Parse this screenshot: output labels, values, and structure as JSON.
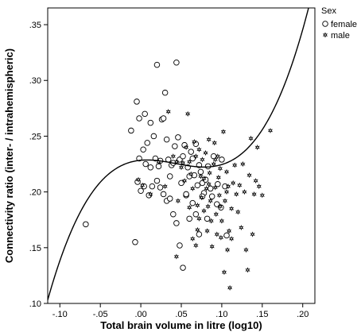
{
  "chart_data": {
    "type": "scatter",
    "xlabel": "Total brain volume in litre (log10)",
    "ylabel": "Connectivity ratio (inter- / intrahemispheric)",
    "xlim": [
      -0.115,
      0.215
    ],
    "ylim": [
      0.1,
      0.365
    ],
    "x_ticks": [
      -0.1,
      -0.05,
      0.0,
      0.05,
      0.1,
      0.15,
      0.2
    ],
    "x_tick_labels": [
      "-.10",
      "-.05",
      ".00",
      ".05",
      ".10",
      ".15",
      ".20"
    ],
    "y_ticks": [
      0.1,
      0.15,
      0.2,
      0.25,
      0.3,
      0.35
    ],
    "y_tick_labels": [
      ".10",
      ".15",
      ".20",
      ".25",
      ".30",
      ".35"
    ],
    "grid": false,
    "legend": {
      "title": "Sex",
      "placement": "top-right outside",
      "entries": [
        {
          "label": "female",
          "marker": "open-circle"
        },
        {
          "label": "male",
          "marker": "star"
        }
      ]
    },
    "fit_line": {
      "type": "cubic",
      "coefficients": [
        0.2284,
        0.0665,
        -4.7,
        36.5
      ]
    },
    "series": [
      {
        "name": "female",
        "marker": "open-circle",
        "points": [
          [
            -0.068,
            0.171
          ],
          [
            -0.007,
            0.155
          ],
          [
            -0.012,
            0.255
          ],
          [
            -0.005,
            0.281
          ],
          [
            -0.002,
            0.266
          ],
          [
            0.003,
            0.238
          ],
          [
            0.005,
            0.27
          ],
          [
            0.008,
            0.244
          ],
          [
            0.012,
            0.262
          ],
          [
            0.016,
            0.25
          ],
          [
            0.02,
            0.314
          ],
          [
            0.022,
            0.223
          ],
          [
            0.024,
            0.228
          ],
          [
            0.026,
            0.265
          ],
          [
            0.028,
            0.266
          ],
          [
            0.03,
            0.289
          ],
          [
            0.032,
            0.247
          ],
          [
            0.034,
            0.229
          ],
          [
            0.036,
            0.214
          ],
          [
            0.038,
            0.224
          ],
          [
            0.04,
            0.226
          ],
          [
            0.042,
            0.241
          ],
          [
            0.044,
            0.316
          ],
          [
            0.046,
            0.249
          ],
          [
            0.048,
            0.229
          ],
          [
            0.05,
            0.208
          ],
          [
            0.052,
            0.232
          ],
          [
            0.054,
            0.242
          ],
          [
            0.056,
            0.197
          ],
          [
            0.058,
            0.222
          ],
          [
            0.06,
            0.214
          ],
          [
            0.062,
            0.236
          ],
          [
            0.064,
            0.23
          ],
          [
            0.066,
            0.215
          ],
          [
            0.068,
            0.243
          ],
          [
            0.07,
            0.206
          ],
          [
            0.072,
            0.224
          ],
          [
            0.074,
            0.218
          ],
          [
            0.076,
            0.208
          ],
          [
            0.078,
            0.199
          ],
          [
            0.08,
            0.211
          ],
          [
            0.083,
            0.223
          ],
          [
            0.086,
            0.203
          ],
          [
            0.09,
            0.232
          ],
          [
            0.095,
            0.207
          ],
          [
            0.1,
            0.229
          ],
          [
            0.104,
            0.205
          ],
          [
            -0.004,
            0.209
          ],
          [
            0.0,
            0.201
          ],
          [
            0.004,
            0.205
          ],
          [
            0.01,
            0.197
          ],
          [
            0.014,
            0.205
          ],
          [
            0.018,
            0.23
          ],
          [
            0.024,
            0.204
          ],
          [
            0.028,
            0.198
          ],
          [
            0.032,
            0.192
          ],
          [
            0.036,
            0.194
          ],
          [
            0.04,
            0.18
          ],
          [
            0.044,
            0.172
          ],
          [
            0.048,
            0.152
          ],
          [
            0.052,
            0.132
          ],
          [
            0.056,
            0.198
          ],
          [
            0.06,
            0.176
          ],
          [
            0.064,
            0.19
          ],
          [
            0.068,
            0.18
          ],
          [
            0.072,
            0.162
          ],
          [
            0.076,
            0.196
          ],
          [
            0.082,
            0.176
          ],
          [
            0.088,
            0.196
          ],
          [
            0.094,
            0.189
          ],
          [
            0.099,
            0.186
          ],
          [
            0.106,
            0.161
          ],
          [
            -0.002,
            0.23
          ],
          [
            0.006,
            0.225
          ],
          [
            0.012,
            0.222
          ],
          [
            0.02,
            0.21
          ]
        ]
      },
      {
        "name": "male",
        "marker": "star",
        "points": [
          [
            -0.003,
            0.211
          ],
          [
            0.002,
            0.206
          ],
          [
            0.012,
            0.198
          ],
          [
            0.022,
            0.227
          ],
          [
            0.03,
            0.205
          ],
          [
            0.034,
            0.272
          ],
          [
            0.04,
            0.232
          ],
          [
            0.044,
            0.227
          ],
          [
            0.05,
            0.222
          ],
          [
            0.054,
            0.21
          ],
          [
            0.058,
            0.27
          ],
          [
            0.06,
            0.227
          ],
          [
            0.062,
            0.216
          ],
          [
            0.064,
            0.203
          ],
          [
            0.066,
            0.245
          ],
          [
            0.068,
            0.232
          ],
          [
            0.07,
            0.188
          ],
          [
            0.072,
            0.176
          ],
          [
            0.074,
            0.214
          ],
          [
            0.075,
            0.195
          ],
          [
            0.076,
            0.229
          ],
          [
            0.078,
            0.183
          ],
          [
            0.08,
            0.235
          ],
          [
            0.081,
            0.203
          ],
          [
            0.082,
            0.165
          ],
          [
            0.083,
            0.187
          ],
          [
            0.084,
            0.247
          ],
          [
            0.085,
            0.217
          ],
          [
            0.086,
            0.192
          ],
          [
            0.087,
            0.174
          ],
          [
            0.088,
            0.151
          ],
          [
            0.09,
            0.225
          ],
          [
            0.091,
            0.244
          ],
          [
            0.092,
            0.204
          ],
          [
            0.093,
            0.18
          ],
          [
            0.094,
            0.162
          ],
          [
            0.095,
            0.232
          ],
          [
            0.096,
            0.213
          ],
          [
            0.097,
            0.197
          ],
          [
            0.098,
            0.187
          ],
          [
            0.099,
            0.159
          ],
          [
            0.1,
            0.174
          ],
          [
            0.102,
            0.254
          ],
          [
            0.103,
            0.128
          ],
          [
            0.104,
            0.192
          ],
          [
            0.106,
            0.218
          ],
          [
            0.107,
            0.148
          ],
          [
            0.108,
            0.205
          ],
          [
            0.109,
            0.165
          ],
          [
            0.11,
            0.114
          ],
          [
            0.112,
            0.158
          ],
          [
            0.114,
            0.208
          ],
          [
            0.116,
            0.224
          ],
          [
            0.118,
            0.198
          ],
          [
            0.12,
            0.182
          ],
          [
            0.122,
            0.206
          ],
          [
            0.124,
            0.168
          ],
          [
            0.126,
            0.225
          ],
          [
            0.128,
            0.2
          ],
          [
            0.13,
            0.148
          ],
          [
            0.132,
            0.13
          ],
          [
            0.134,
            0.215
          ],
          [
            0.136,
            0.248
          ],
          [
            0.138,
            0.162
          ],
          [
            0.14,
            0.198
          ],
          [
            0.142,
            0.21
          ],
          [
            0.144,
            0.24
          ],
          [
            0.146,
            0.205
          ],
          [
            0.15,
            0.197
          ],
          [
            0.16,
            0.255
          ],
          [
            0.06,
            0.186
          ],
          [
            0.064,
            0.158
          ],
          [
            0.068,
            0.152
          ],
          [
            0.07,
            0.166
          ],
          [
            0.072,
            0.238
          ],
          [
            0.044,
            0.142
          ],
          [
            0.046,
            0.192
          ],
          [
            0.052,
            0.226
          ],
          [
            0.056,
            0.24
          ],
          [
            0.078,
            0.212
          ],
          [
            0.084,
            0.207
          ],
          [
            0.092,
            0.229
          ],
          [
            0.098,
            0.221
          ],
          [
            0.106,
            0.2
          ],
          [
            0.112,
            0.185
          ]
        ]
      }
    ]
  }
}
